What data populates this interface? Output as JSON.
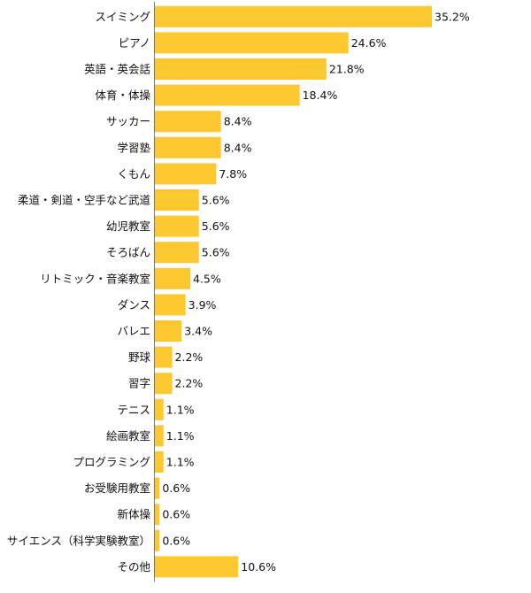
{
  "chart_data": {
    "type": "bar",
    "orientation": "horizontal",
    "title": "",
    "xlabel": "",
    "ylabel": "",
    "xlim": [
      0,
      38
    ],
    "grid": false,
    "legend": "none",
    "bar_color": "#FDC82F",
    "axis_color": "#777777",
    "categories": [
      "スイミング",
      "ピアノ",
      "英語・英会話",
      "体育・体操",
      "サッカー",
      "学習塾",
      "くもん",
      "柔道・剣道・空手など武道",
      "幼児教室",
      "そろばん",
      "リトミック・音楽教室",
      "ダンス",
      "バレエ",
      "野球",
      "習字",
      "テニス",
      "絵画教室",
      "プログラミング",
      "お受験用教室",
      "新体操",
      "サイエンス（科学実験教室）",
      "その他"
    ],
    "values": [
      35.2,
      24.6,
      21.8,
      18.4,
      8.4,
      8.4,
      7.8,
      5.6,
      5.6,
      5.6,
      4.5,
      3.9,
      3.4,
      2.2,
      2.2,
      1.1,
      1.1,
      1.1,
      0.6,
      0.6,
      0.6,
      10.6
    ],
    "value_labels": [
      "35.2%",
      "24.6%",
      "21.8%",
      "18.4%",
      "8.4%",
      "8.4%",
      "7.8%",
      "5.6%",
      "5.6%",
      "5.6%",
      "4.5%",
      "3.9%",
      "3.4%",
      "2.2%",
      "2.2%",
      "1.1%",
      "1.1%",
      "1.1%",
      "0.6%",
      "0.6%",
      "0.6%",
      "10.6%"
    ]
  }
}
